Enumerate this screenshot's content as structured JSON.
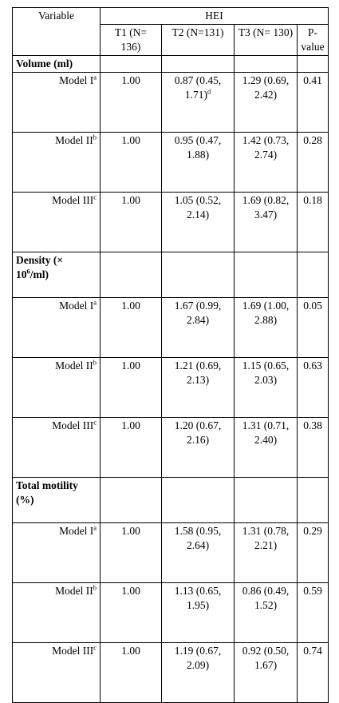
{
  "header": {
    "variable": "Variable",
    "hei": "HEI",
    "t1": "T1 (N= 136)",
    "t2": "T2 (N=131)",
    "t3": "T3 (N= 130)",
    "pvalue": "P-value"
  },
  "sections": [
    {
      "title": "Volume (ml)",
      "rows": [
        {
          "label": "Model I",
          "sup": "a",
          "t1": "1.00",
          "t2": "0.87 (0.45, 1.71)",
          "t2_sup": "d",
          "t3": "1.29 (0.69, 2.42)",
          "p": "0.41"
        },
        {
          "label": "Model II",
          "sup": "b",
          "t1": "1.00",
          "t2": "0.95 (0.47, 1.88)",
          "t2_sup": "",
          "t3": "1.42 (0.73, 2.74)",
          "p": "0.28"
        },
        {
          "label": "Model III",
          "sup": "c",
          "t1": "1.00",
          "t2": "1.05 (0.52, 2.14)",
          "t2_sup": "",
          "t3": "1.69 (0.82, 3.47)",
          "p": "0.18"
        }
      ]
    },
    {
      "title": "Density (× 10",
      "title_sup": "6",
      "title_end": "/ml)",
      "rows": [
        {
          "label": "Model I",
          "sup": "a",
          "t1": "1.00",
          "t2": "1.67 (0.99, 2.84)",
          "t2_sup": "",
          "t3": "1.69 (1.00, 2.88)",
          "p": "0.05"
        },
        {
          "label": "Model II",
          "sup": "b",
          "t1": "1.00",
          "t2": "1.21 (0.69, 2.13)",
          "t2_sup": "",
          "t3": "1.15 (0.65, 2.03)",
          "p": "0.63"
        },
        {
          "label": "Model III",
          "sup": "c",
          "t1": "1.00",
          "t2": "1.20 (0.67, 2.16)",
          "t2_sup": "",
          "t3": "1.31 (0.71, 2.40)",
          "p": "0.38"
        }
      ]
    },
    {
      "title": "Total motility (%)",
      "rows": [
        {
          "label": "Model I",
          "sup": "a",
          "t1": "1.00",
          "t2": "1.58 (0.95, 2.64)",
          "t2_sup": "",
          "t3": "1.31 (0.78, 2.21)",
          "p": "0.29"
        },
        {
          "label": "Model II",
          "sup": "b",
          "t1": "1.00",
          "t2": "1.13 (0.65, 1.95)",
          "t2_sup": "",
          "t3": "0.86 (0.49, 1.52)",
          "p": "0.59"
        },
        {
          "label": "Model III",
          "sup": "c",
          "t1": "1.00",
          "t2": "1.19 (0.67, 2.09)",
          "t2_sup": "",
          "t3": "0.92 (0.50, 1.67)",
          "p": "0.74"
        }
      ]
    }
  ]
}
